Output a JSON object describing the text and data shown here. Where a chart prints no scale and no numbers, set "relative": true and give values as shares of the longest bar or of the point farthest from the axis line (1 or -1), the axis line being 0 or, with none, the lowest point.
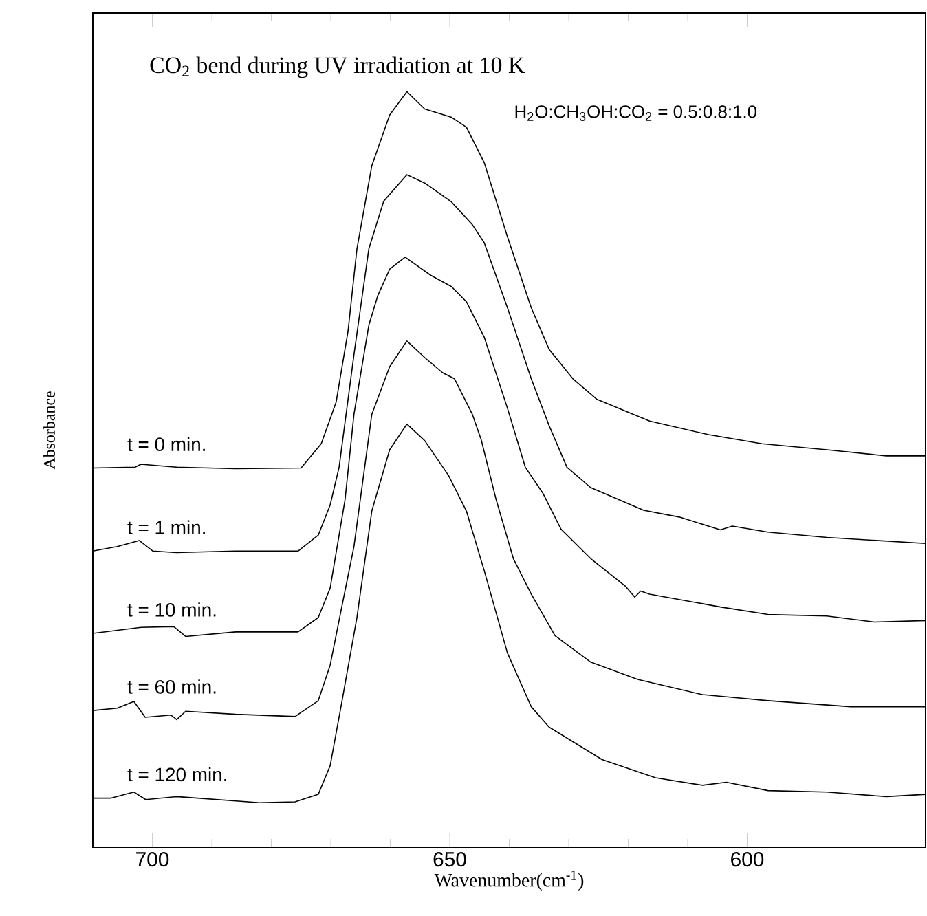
{
  "chart_data": {
    "type": "line",
    "title": "CO$_{2}$ bend during UV irradiation at 10 K",
    "xlabel": "Wavenumber(cm$^{-1}$)",
    "ylabel": "Absorbance",
    "annotations": [
      "H$_{2}$O:CH$_{3}$OH:CO$_{2}$ = 0.5:0.8:1.0"
    ],
    "xlim": [
      710,
      570
    ],
    "xticks": [
      700,
      650,
      600
    ],
    "relative": true,
    "line_style": "solid",
    "series": [
      {
        "name": "t = 0 min.",
        "color": "#000000",
        "x": [
          710.0,
          702.9,
          701.9,
          695.9,
          686.0,
          675.0,
          671.6,
          669.1,
          667.1,
          665.6,
          663.1,
          660.1,
          657.2,
          654.2,
          649.7,
          647.2,
          644.2,
          640.3,
          636.3,
          633.3,
          629.3,
          625.3,
          620.4,
          616.4,
          606.5,
          597.5,
          586.6,
          576.6,
          570.0
        ],
        "values": [
          0.502,
          0.503,
          0.507,
          0.503,
          0.501,
          0.502,
          0.534,
          0.589,
          0.683,
          0.792,
          0.902,
          0.969,
          1.0,
          0.977,
          0.966,
          0.953,
          0.906,
          0.808,
          0.714,
          0.659,
          0.62,
          0.593,
          0.577,
          0.564,
          0.546,
          0.534,
          0.526,
          0.518,
          0.518
        ]
      },
      {
        "name": "t = 1 min.",
        "color": "#000000",
        "x": [
          710.0,
          705.9,
          702.2,
          699.9,
          695.9,
          686.0,
          675.5,
          672.1,
          670.1,
          668.6,
          666.1,
          663.6,
          661.1,
          657.2,
          654.2,
          649.7,
          646.2,
          644.2,
          640.3,
          636.3,
          633.3,
          630.3,
          626.3,
          617.4,
          611.4,
          604.5,
          602.5,
          596.5,
          586.6,
          570.0
        ],
        "values": [
          0.392,
          0.398,
          0.406,
          0.392,
          0.39,
          0.392,
          0.392,
          0.413,
          0.453,
          0.503,
          0.652,
          0.792,
          0.855,
          0.89,
          0.879,
          0.854,
          0.824,
          0.8,
          0.714,
          0.62,
          0.558,
          0.503,
          0.476,
          0.446,
          0.437,
          0.42,
          0.425,
          0.417,
          0.41,
          0.402
        ]
      },
      {
        "name": "t = 10 min.",
        "color": "#000000",
        "x": [
          710.0,
          701.9,
          696.4,
          694.4,
          686.0,
          675.5,
          672.1,
          670.1,
          667.6,
          666.1,
          663.6,
          662.1,
          660.1,
          657.5,
          653.2,
          649.7,
          647.2,
          644.2,
          640.3,
          637.3,
          634.3,
          631.3,
          626.3,
          620.4,
          618.9,
          617.9,
          616.4,
          604.5,
          596.5,
          586.6,
          578.6,
          570.0
        ],
        "values": [
          0.283,
          0.291,
          0.292,
          0.279,
          0.285,
          0.285,
          0.304,
          0.343,
          0.46,
          0.573,
          0.691,
          0.73,
          0.765,
          0.781,
          0.757,
          0.742,
          0.722,
          0.675,
          0.581,
          0.503,
          0.468,
          0.421,
          0.382,
          0.345,
          0.331,
          0.339,
          0.335,
          0.318,
          0.308,
          0.306,
          0.298,
          0.3
        ]
      },
      {
        "name": "t = 60 min.",
        "color": "#000000",
        "x": [
          710.0,
          705.9,
          703.1,
          701.2,
          696.9,
          695.9,
          694.4,
          686.0,
          676.0,
          672.1,
          670.1,
          668.1,
          666.1,
          663.1,
          660.1,
          657.2,
          654.2,
          651.2,
          649.2,
          646.2,
          644.7,
          642.2,
          639.3,
          636.3,
          632.3,
          626.3,
          618.4,
          607.5,
          596.5,
          582.6,
          570.0
        ],
        "values": [
          0.181,
          0.184,
          0.193,
          0.172,
          0.175,
          0.169,
          0.18,
          0.176,
          0.173,
          0.194,
          0.241,
          0.32,
          0.398,
          0.573,
          0.636,
          0.67,
          0.648,
          0.628,
          0.62,
          0.573,
          0.539,
          0.46,
          0.382,
          0.335,
          0.28,
          0.245,
          0.222,
          0.202,
          0.194,
          0.186,
          0.186
        ]
      },
      {
        "name": "t = 120 min.",
        "color": "#000000",
        "x": [
          710.0,
          706.9,
          703.1,
          701.1,
          695.9,
          682.0,
          676.0,
          672.1,
          670.1,
          668.1,
          665.6,
          663.1,
          660.1,
          657.2,
          654.2,
          650.2,
          647.2,
          644.2,
          640.3,
          636.3,
          633.3,
          624.4,
          615.4,
          607.5,
          603.5,
          596.5,
          586.6,
          576.6,
          570.0
        ],
        "values": [
          0.065,
          0.065,
          0.073,
          0.063,
          0.067,
          0.059,
          0.06,
          0.07,
          0.108,
          0.194,
          0.304,
          0.445,
          0.526,
          0.56,
          0.538,
          0.492,
          0.445,
          0.366,
          0.257,
          0.186,
          0.159,
          0.116,
          0.092,
          0.082,
          0.086,
          0.075,
          0.073,
          0.067,
          0.07
        ]
      }
    ]
  }
}
